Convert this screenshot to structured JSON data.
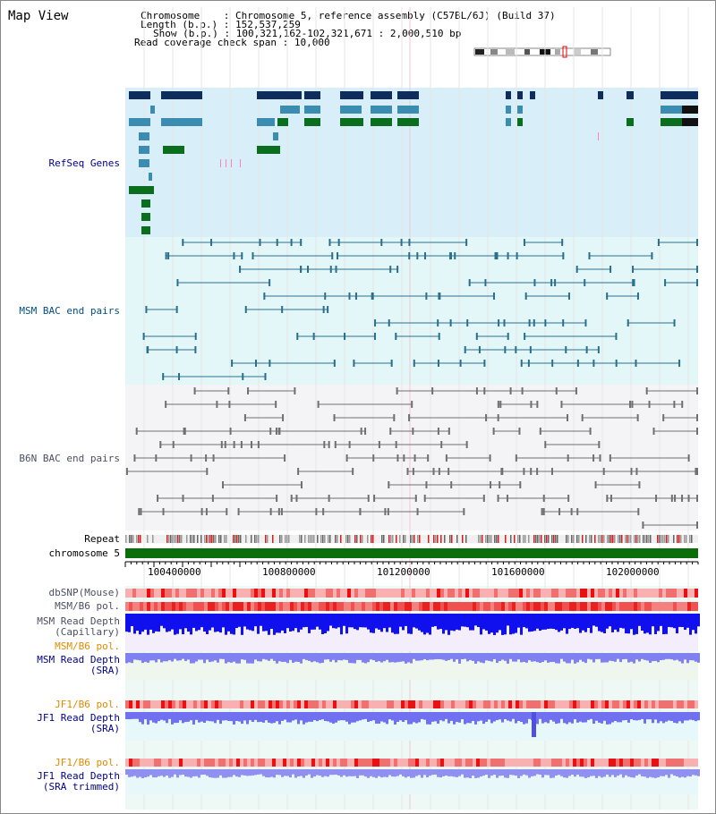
{
  "title": "Map View",
  "info": {
    "chromosome_key": "Chromosome",
    "chromosome_val": "Chromosome 5, reference assembly (C57BL/6J) (Build 37)",
    "length_key": "Length (b.p.)",
    "length_val": "152,537,259",
    "show_key": "Show (b.p.)",
    "show_val": "100,321,162-102,321,671 : 2,000,510 bp",
    "coverage_key": "Read coverage check span",
    "coverage_val": "10,000"
  },
  "tracks": {
    "refseq": "RefSeq Genes",
    "msm_bac": "MSM BAC end pairs",
    "b6n_bac": "B6N BAC end pairs",
    "repeat": "Repeat",
    "chromosome": "chromosome 5",
    "dbsnp": "dbSNP(Mouse)",
    "msm_b6_pol": "MSM/B6 pol.",
    "msm_depth_cap_1": "MSM Read Depth",
    "msm_depth_cap_2": "(Capillary)",
    "msm_b6_pol2": "MSM/B6 pol.",
    "msm_depth_sra_1": "MSM Read Depth",
    "msm_depth_sra_2": "(SRA)",
    "jf1_b6_pol": "JF1/B6 pol.",
    "jf1_depth_sra_1": "JF1 Read Depth",
    "jf1_depth_sra_2": "(SRA)",
    "jf1_b6_pol2": "JF1/B6 pol.",
    "jf1_depth_trim_1": "JF1 Read Depth",
    "jf1_depth_trim_2": "(SRA trimmed)"
  },
  "axis_ticks": [
    "100400000",
    "100800000",
    "101200000",
    "101600000",
    "102000000"
  ],
  "colors": {
    "refseq_bg": "#d8eef8",
    "msm_bg": "#e4f7f8",
    "b6n_bg": "#f4f4f6",
    "gene_navy": "#0e2c5c",
    "gene_teal": "#3a8cb0",
    "gene_green": "#0a6e1e",
    "msm_line": "#2a6f8c",
    "b6n_line": "#707070",
    "chromosome_green": "#0a6e0a",
    "depth_blue": "#1010ee",
    "depth_light": "#8080f0"
  }
}
